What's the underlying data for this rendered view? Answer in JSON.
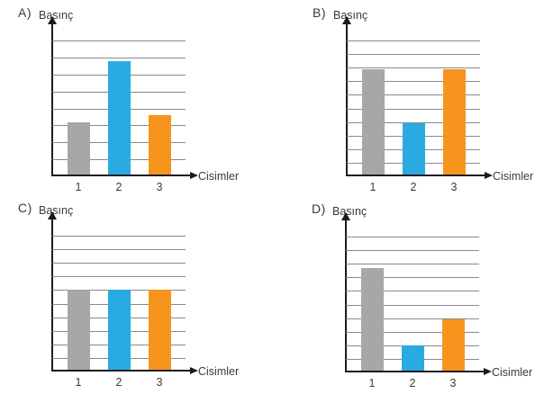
{
  "page": {
    "background": "#ffffff",
    "description_labels": {
      "y_axis": "Basınç",
      "x_axis": "Cisimler"
    }
  },
  "palette": {
    "bar_colors": [
      "#a5a7a9",
      "#29abe2",
      "#f7941e"
    ],
    "grid_color": "#8a8a8a",
    "axis_color": "#1b1b1b",
    "text_color": "#3a3a3a"
  },
  "chart_data": [
    {
      "type": "bar",
      "option_label": "A)",
      "ylabel": "Basınç",
      "xlabel": "Cisimler",
      "categories": [
        "1",
        "2",
        "3"
      ],
      "values": [
        3.2,
        6.8,
        3.6
      ],
      "gridlines": 8,
      "ylim": [
        0,
        8
      ],
      "legend": "none",
      "grid": "horizontal"
    },
    {
      "type": "bar",
      "option_label": "B)",
      "ylabel": "Basınç",
      "xlabel": "Cisimler",
      "categories": [
        "1",
        "2",
        "3"
      ],
      "values": [
        7.9,
        3.9,
        7.9
      ],
      "gridlines": 10,
      "ylim": [
        0,
        10
      ],
      "legend": "none",
      "grid": "horizontal"
    },
    {
      "type": "bar",
      "option_label": "C)",
      "ylabel": "Basınç",
      "xlabel": "Cisimler",
      "categories": [
        "1",
        "2",
        "3"
      ],
      "values": [
        6,
        6,
        6
      ],
      "gridlines": 10,
      "ylim": [
        0,
        10
      ],
      "legend": "none",
      "grid": "horizontal"
    },
    {
      "type": "bar",
      "option_label": "D)",
      "ylabel": "Basınç",
      "xlabel": "Cisimler",
      "categories": [
        "1",
        "2",
        "3"
      ],
      "values": [
        7.7,
        2,
        3.9
      ],
      "gridlines": 10,
      "ylim": [
        0,
        10
      ],
      "legend": "none",
      "grid": "horizontal"
    }
  ]
}
